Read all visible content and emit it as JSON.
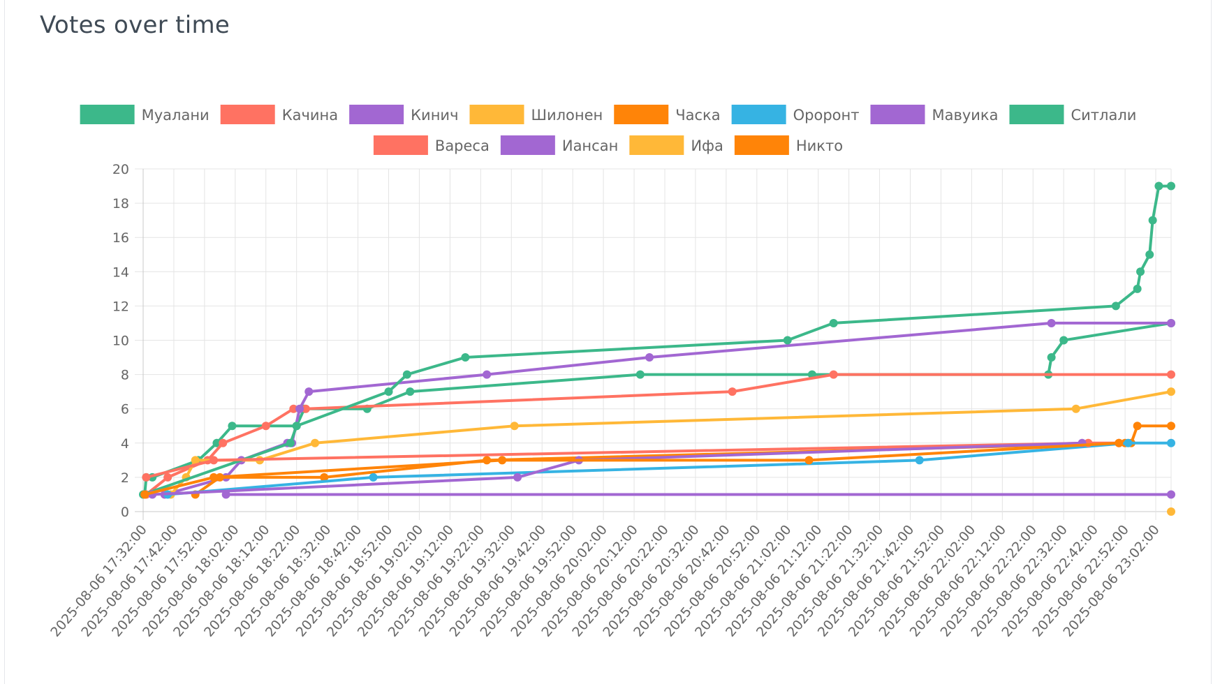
{
  "card": {
    "title": "Votes over time"
  },
  "chart_data": {
    "type": "line",
    "title": "",
    "xlabel": "",
    "ylabel": "",
    "ylim": [
      0,
      20
    ],
    "y_ticks": [
      0,
      2,
      4,
      6,
      8,
      10,
      12,
      14,
      16,
      18,
      20
    ],
    "x_ticks": [
      "2025-08-06 17:32:00",
      "2025-08-06 17:42:00",
      "2025-08-06 17:52:00",
      "2025-08-06 18:02:00",
      "2025-08-06 18:12:00",
      "2025-08-06 18:22:00",
      "2025-08-06 18:32:00",
      "2025-08-06 18:42:00",
      "2025-08-06 18:52:00",
      "2025-08-06 19:02:00",
      "2025-08-06 19:12:00",
      "2025-08-06 19:22:00",
      "2025-08-06 19:32:00",
      "2025-08-06 19:42:00",
      "2025-08-06 19:52:00",
      "2025-08-06 20:02:00",
      "2025-08-06 20:12:00",
      "2025-08-06 20:22:00",
      "2025-08-06 20:32:00",
      "2025-08-06 20:42:00",
      "2025-08-06 20:52:00",
      "2025-08-06 21:02:00",
      "2025-08-06 21:12:00",
      "2025-08-06 21:22:00",
      "2025-08-06 21:32:00",
      "2025-08-06 21:42:00",
      "2025-08-06 21:52:00",
      "2025-08-06 22:02:00",
      "2025-08-06 22:12:00",
      "2025-08-06 22:22:00",
      "2025-08-06 22:32:00",
      "2025-08-06 22:42:00",
      "2025-08-06 22:52:00",
      "2025-08-06 23:02:00"
    ],
    "x_range": [
      "2025-08-06 17:32:00",
      "2025-08-06 23:07:00"
    ],
    "grid": true,
    "legend_position": "top",
    "series": [
      {
        "name": "Муалани",
        "color": "#3cb88a",
        "points": [
          [
            "2025-08-06 17:32:30",
            1
          ],
          [
            "2025-08-06 17:33:00",
            2
          ],
          [
            "2025-08-06 17:35:00",
            2
          ],
          [
            "2025-08-06 17:50:00",
            3
          ],
          [
            "2025-08-06 17:56:00",
            4
          ],
          [
            "2025-08-06 18:01:00",
            5
          ],
          [
            "2025-08-06 18:22:00",
            5
          ],
          [
            "2025-08-06 18:24:30",
            6
          ],
          [
            "2025-08-06 18:45:00",
            6
          ],
          [
            "2025-08-06 18:59:00",
            7
          ],
          [
            "2025-08-06 20:14:00",
            8
          ],
          [
            "2025-08-06 21:10:00",
            8
          ],
          [
            "2025-08-06 22:27:00",
            8
          ],
          [
            "2025-08-06 22:28:00",
            9
          ],
          [
            "2025-08-06 22:32:00",
            10
          ],
          [
            "2025-08-06 23:07:00",
            11
          ]
        ]
      },
      {
        "name": "Качина",
        "color": "#ff7262",
        "points": [
          [
            "2025-08-06 17:33:00",
            1
          ],
          [
            "2025-08-06 17:40:00",
            2
          ],
          [
            "2025-08-06 17:53:00",
            3
          ],
          [
            "2025-08-06 17:58:00",
            4
          ],
          [
            "2025-08-06 18:12:00",
            5
          ],
          [
            "2025-08-06 18:21:00",
            6
          ],
          [
            "2025-08-06 18:25:00",
            6
          ],
          [
            "2025-08-06 20:44:00",
            7
          ],
          [
            "2025-08-06 21:17:00",
            8
          ],
          [
            "2025-08-06 23:07:00",
            8
          ]
        ]
      },
      {
        "name": "Кинич",
        "color": "#a267d2",
        "points": [
          [
            "2025-08-06 17:39:00",
            1
          ],
          [
            "2025-08-06 17:59:00",
            2
          ],
          [
            "2025-08-06 18:04:00",
            3
          ],
          [
            "2025-08-06 18:19:00",
            4
          ],
          [
            "2025-08-06 18:20:30",
            4
          ],
          [
            "2025-08-06 18:23:00",
            6
          ],
          [
            "2025-08-06 18:26:00",
            7
          ],
          [
            "2025-08-06 19:24:00",
            8
          ],
          [
            "2025-08-06 20:17:00",
            9
          ],
          [
            "2025-08-06 22:28:00",
            11
          ],
          [
            "2025-08-06 23:07:00",
            11
          ]
        ]
      },
      {
        "name": "Шилонен",
        "color": "#ffb838",
        "points": [
          [
            "2025-08-06 17:41:00",
            1
          ],
          [
            "2025-08-06 17:46:00",
            2
          ],
          [
            "2025-08-06 17:49:00",
            3
          ],
          [
            "2025-08-06 18:10:00",
            3
          ],
          [
            "2025-08-06 18:28:00",
            4
          ],
          [
            "2025-08-06 19:33:00",
            5
          ],
          [
            "2025-08-06 22:36:00",
            6
          ],
          [
            "2025-08-06 23:07:00",
            7
          ]
        ]
      },
      {
        "name": "Часка",
        "color": "#ff8408",
        "points": [
          [
            "2025-08-06 17:49:00",
            1
          ],
          [
            "2025-08-06 17:57:00",
            2
          ],
          [
            "2025-08-06 18:31:00",
            2
          ],
          [
            "2025-08-06 19:24:00",
            3
          ],
          [
            "2025-08-06 22:52:00",
            4
          ],
          [
            "2025-08-06 22:54:00",
            4
          ],
          [
            "2025-08-06 22:56:00",
            5
          ],
          [
            "2025-08-06 23:07:00",
            5
          ]
        ]
      },
      {
        "name": "Ороронт",
        "color": "#36b3e3",
        "points": [
          [
            "2025-08-06 17:40:00",
            1
          ],
          [
            "2025-08-06 18:47:00",
            2
          ],
          [
            "2025-08-06 21:45:00",
            3
          ],
          [
            "2025-08-06 22:53:00",
            4
          ],
          [
            "2025-08-06 23:07:00",
            4
          ]
        ]
      },
      {
        "name": "Мавуика",
        "color": "#a267d2",
        "points": [
          [
            "2025-08-06 17:59:00",
            1
          ],
          [
            "2025-08-06 23:07:00",
            1
          ]
        ]
      },
      {
        "name": "Ситлали",
        "color": "#3cb88a",
        "points": [
          [
            "2025-08-06 17:32:00",
            1
          ],
          [
            "2025-08-06 18:20:00",
            4
          ],
          [
            "2025-08-06 18:22:00",
            5
          ],
          [
            "2025-08-06 18:52:00",
            7
          ],
          [
            "2025-08-06 18:58:00",
            8
          ],
          [
            "2025-08-06 19:17:00",
            9
          ],
          [
            "2025-08-06 21:02:00",
            10
          ],
          [
            "2025-08-06 21:17:00",
            11
          ],
          [
            "2025-08-06 22:49:00",
            12
          ],
          [
            "2025-08-06 22:56:00",
            13
          ],
          [
            "2025-08-06 22:57:00",
            14
          ],
          [
            "2025-08-06 23:00:00",
            15
          ],
          [
            "2025-08-06 23:01:00",
            17
          ],
          [
            "2025-08-06 23:03:00",
            19
          ],
          [
            "2025-08-06 23:07:00",
            19
          ]
        ]
      },
      {
        "name": "Вареса",
        "color": "#ff7262",
        "points": [
          [
            "2025-08-06 17:33:00",
            2
          ],
          [
            "2025-08-06 17:55:00",
            3
          ],
          [
            "2025-08-06 22:40:00",
            4
          ],
          [
            "2025-08-06 22:50:00",
            4
          ]
        ]
      },
      {
        "name": "Иансан",
        "color": "#a267d2",
        "points": [
          [
            "2025-08-06 17:35:00",
            1
          ],
          [
            "2025-08-06 19:34:00",
            2
          ],
          [
            "2025-08-06 19:54:00",
            3
          ],
          [
            "2025-08-06 22:38:00",
            4
          ]
        ]
      },
      {
        "name": "Ифа",
        "color": "#ffb838",
        "points": [
          [
            "2025-08-06 23:07:00",
            0
          ]
        ]
      },
      {
        "name": "Никто",
        "color": "#ff8408",
        "points": [
          [
            "2025-08-06 17:32:30",
            1
          ],
          [
            "2025-08-06 17:55:00",
            2
          ],
          [
            "2025-08-06 19:29:00",
            3
          ],
          [
            "2025-08-06 21:09:00",
            3
          ],
          [
            "2025-08-06 22:50:00",
            4
          ]
        ]
      }
    ]
  }
}
